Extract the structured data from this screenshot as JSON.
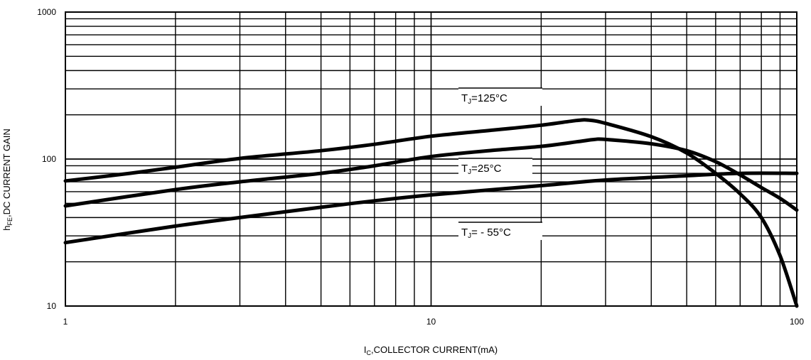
{
  "chart_data": {
    "type": "line",
    "title": "",
    "xlabel": {
      "main": "I",
      "sub": "C",
      "rest": ",COLLECTOR CURRENT(mA)"
    },
    "ylabel": {
      "main": "h",
      "sub": "FE",
      "rest": ",DC CURRENT GAIN"
    },
    "xscale": "log",
    "yscale": "log",
    "xlim": [
      1,
      100
    ],
    "ylim": [
      10,
      1000
    ],
    "grid": true,
    "x_ticks": [
      {
        "value": 1,
        "label": "1"
      },
      {
        "value": 10,
        "label": "10"
      },
      {
        "value": 100,
        "label": "100"
      }
    ],
    "y_ticks": [
      {
        "value": 10,
        "label": "10"
      },
      {
        "value": 100,
        "label": "100"
      },
      {
        "value": 1000,
        "label": "1000"
      }
    ],
    "series": [
      {
        "name": "TJ=125°C",
        "label": {
          "main": "T",
          "sub": "J",
          "rest": "=125°C"
        },
        "points": [
          [
            1,
            71
          ],
          [
            1.5,
            80
          ],
          [
            2,
            88
          ],
          [
            3,
            101
          ],
          [
            5,
            114
          ],
          [
            7,
            126
          ],
          [
            10,
            143
          ],
          [
            15,
            158
          ],
          [
            20,
            170
          ],
          [
            25,
            183
          ],
          [
            27,
            184
          ],
          [
            30,
            175
          ],
          [
            40,
            142
          ],
          [
            50,
            110
          ],
          [
            60,
            80
          ],
          [
            70,
            58
          ],
          [
            80,
            40
          ],
          [
            90,
            22
          ],
          [
            100,
            10
          ]
        ]
      },
      {
        "name": "TJ=25°C",
        "label": {
          "main": "T",
          "sub": "J",
          "rest": "=25°C"
        },
        "points": [
          [
            1,
            48
          ],
          [
            2,
            62
          ],
          [
            3,
            70
          ],
          [
            5,
            80
          ],
          [
            7,
            90
          ],
          [
            10,
            104
          ],
          [
            15,
            115
          ],
          [
            20,
            122
          ],
          [
            25,
            131
          ],
          [
            28,
            136
          ],
          [
            30,
            136
          ],
          [
            40,
            127
          ],
          [
            50,
            114
          ],
          [
            60,
            96
          ],
          [
            70,
            78
          ],
          [
            80,
            64
          ],
          [
            90,
            54
          ],
          [
            100,
            45
          ]
        ]
      },
      {
        "name": "TJ= - 55°C",
        "label": {
          "main": "T",
          "sub": "J",
          "rest": "= - 55°C"
        },
        "points": [
          [
            1,
            27
          ],
          [
            2,
            35
          ],
          [
            3,
            40
          ],
          [
            5,
            47
          ],
          [
            7,
            52
          ],
          [
            10,
            57
          ],
          [
            20,
            66
          ],
          [
            30,
            72
          ],
          [
            50,
            77
          ],
          [
            70,
            80
          ],
          [
            100,
            80
          ]
        ]
      }
    ]
  }
}
